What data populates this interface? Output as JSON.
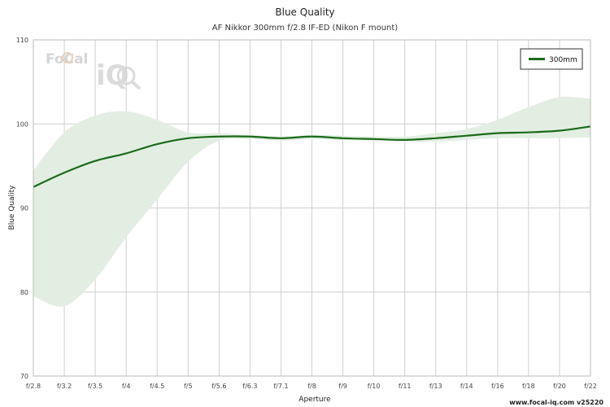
{
  "chart_data": {
    "type": "line",
    "title": "Blue Quality",
    "subtitle": "AF Nikkor 300mm f/2.8 IF-ED (Nikon F mount)",
    "xlabel": "Aperture",
    "ylabel": "Blue Quality",
    "ylim": [
      70,
      110
    ],
    "yticks": [
      "70",
      "80",
      "90",
      "100",
      "110"
    ],
    "categories": [
      "f/2.8",
      "f/3.2",
      "f/3.5",
      "f/4",
      "f/4.5",
      "f/5",
      "f/5.6",
      "f/6.3",
      "f/7.1",
      "f/8",
      "f/9",
      "f/10",
      "f/11",
      "f/13",
      "f/14",
      "f/16",
      "f/18",
      "f/20",
      "f/22"
    ],
    "grid": true,
    "legend_position": "top-right",
    "series": [
      {
        "name": "300mm",
        "color": "#1a6b1a",
        "values": [
          92.5,
          94.2,
          95.6,
          96.5,
          97.6,
          98.3,
          98.5,
          98.5,
          98.3,
          98.5,
          98.3,
          98.2,
          98.1,
          98.3,
          98.6,
          98.9,
          99.0,
          99.2,
          99.7
        ]
      }
    ],
    "range_band": {
      "color": "#e3eee3",
      "upper": [
        94.5,
        99.0,
        101.0,
        101.5,
        100.5,
        99.0,
        98.9,
        98.7,
        98.5,
        98.7,
        98.6,
        98.5,
        98.5,
        98.9,
        99.4,
        100.5,
        102.0,
        103.2,
        103.0
      ],
      "lower": [
        79.5,
        78.3,
        81.5,
        86.5,
        91.0,
        95.5,
        98.0,
        98.2,
        98.0,
        98.2,
        98.1,
        98.0,
        97.9,
        97.9,
        98.1,
        98.3,
        98.3,
        98.3,
        98.4
      ]
    }
  },
  "watermark": {
    "text_top": "FoCal",
    "text_bottom": "iQ"
  },
  "footer": "www.focal-iq.com  v25220"
}
